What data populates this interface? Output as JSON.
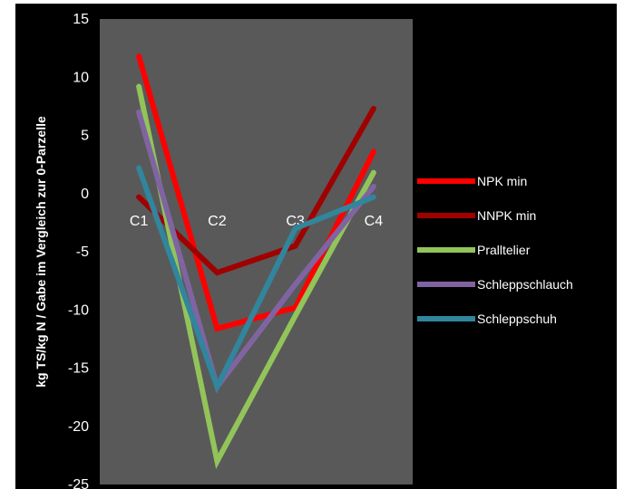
{
  "chart_data": {
    "type": "line",
    "title": "",
    "xlabel": "",
    "ylabel": "kg TS/kg N / Gabe im Vergleich zur 0-Parzelle",
    "categories": [
      "C1",
      "C2",
      "C3",
      "C4"
    ],
    "ylim": [
      -25,
      15
    ],
    "yticks": [
      15,
      10,
      5,
      0,
      -5,
      -10,
      -15,
      -20,
      -25
    ],
    "grid": false,
    "legend_position": "right",
    "background": "#000000",
    "plot_background": "#595959",
    "series": [
      {
        "name": "NPK min",
        "color": "#ff0000",
        "values": [
          11.8,
          -11.6,
          -9.8,
          3.6
        ]
      },
      {
        "name": "NNPK min",
        "color": "#a00000",
        "values": [
          -0.3,
          -6.8,
          -4.5,
          7.3
        ]
      },
      {
        "name": "Pralltelier",
        "color": "#92c45a",
        "values": [
          9.2,
          -23.0,
          -10.5,
          1.8
        ]
      },
      {
        "name": "Schleppschlauch",
        "color": "#8064a2",
        "values": [
          7.0,
          -16.6,
          -7.8,
          0.6
        ]
      },
      {
        "name": "Schleppschuh",
        "color": "#31859c",
        "values": [
          2.2,
          -16.6,
          -3.0,
          -0.3
        ]
      }
    ]
  }
}
